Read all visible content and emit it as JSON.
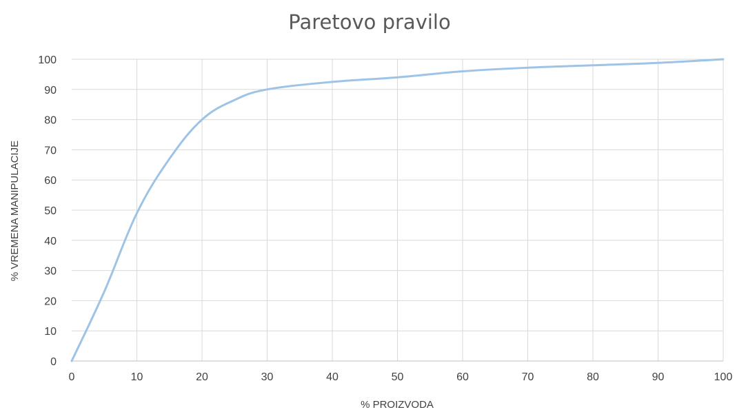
{
  "chart_data": {
    "type": "line",
    "title": "Paretovo pravilo",
    "xlabel": "% PROIZVODA",
    "ylabel": "% VREMENA MANIPULACIJE",
    "xlim": [
      0,
      100
    ],
    "ylim": [
      0,
      100
    ],
    "x_ticks": [
      0,
      10,
      20,
      30,
      40,
      50,
      60,
      70,
      80,
      90,
      100
    ],
    "y_ticks": [
      0,
      10,
      20,
      30,
      40,
      50,
      60,
      70,
      80,
      90,
      100
    ],
    "grid": true,
    "legend": "none",
    "series": [
      {
        "color": "#9dc3e6",
        "x": [
          0,
          5,
          10,
          15,
          20,
          25,
          30,
          40,
          50,
          60,
          70,
          80,
          90,
          100
        ],
        "y": [
          0,
          23,
          49,
          67,
          80,
          86.5,
          90,
          92.5,
          94,
          96,
          97.2,
          98,
          98.8,
          100
        ]
      }
    ]
  }
}
